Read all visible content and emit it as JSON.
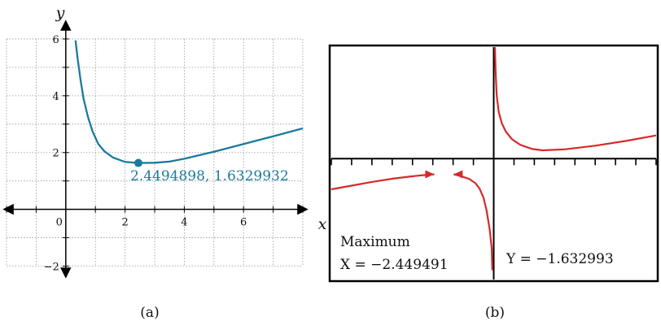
{
  "chart_data": [
    {
      "type": "line",
      "panel_label": "(a)",
      "xlabel": "x",
      "ylabel": "y",
      "xlim": [
        -2,
        8
      ],
      "ylim": [
        -2.3,
        6.8
      ],
      "x_ticks": [
        "0",
        "2",
        "4",
        "6"
      ],
      "y_ticks": [
        "6",
        "4",
        "2",
        "−2"
      ],
      "grid": true,
      "series": [
        {
          "x": [
            0.33,
            0.4,
            0.5,
            0.6,
            0.75,
            0.9,
            1.1,
            1.3,
            1.6,
            2.0,
            2.4494898,
            3.0,
            3.5,
            4.0,
            5.0,
            6.0,
            7.0,
            8.0
          ],
          "y": [
            5.95,
            5.3,
            4.55,
            3.9,
            3.25,
            2.75,
            2.3,
            2.05,
            1.82,
            1.67,
            1.6329932,
            1.64,
            1.68,
            1.78,
            2.03,
            2.3,
            2.57,
            2.85
          ]
        }
      ],
      "point": {
        "x": 2.4494898,
        "y": 1.6329932,
        "label": "2.4494898, 1.6329932"
      },
      "colors": {
        "curve": "#1a7a9e",
        "point": "#1a7a9e"
      }
    },
    {
      "type": "line",
      "panel_label": "(b)",
      "calculator_screen": true,
      "xlim": [
        -8,
        8
      ],
      "ylim": [
        -6.5,
        6
      ],
      "series": [
        {
          "x": [
            0.06,
            0.1,
            0.15,
            0.25,
            0.4,
            0.6,
            0.9,
            1.3,
            1.9,
            2.4,
            3.5,
            5,
            6.5,
            8
          ],
          "y": [
            6,
            4.5,
            3.4,
            2.5,
            1.9,
            1.45,
            1.05,
            0.75,
            0.52,
            0.45,
            0.5,
            0.7,
            0.95,
            1.25
          ]
        },
        {
          "x": [
            -8,
            -7,
            -6,
            -5,
            -4.2,
            -3.5,
            -2.93
          ],
          "y": [
            -1.65,
            -1.45,
            -1.25,
            -1.08,
            -0.97,
            -0.89,
            -0.84
          ]
        },
        {
          "x": [
            -1.97,
            -1.6,
            -1.2,
            -0.9,
            -0.7,
            -0.5,
            -0.35,
            -0.2,
            -0.1,
            -0.07
          ],
          "y": [
            -0.84,
            -0.94,
            -1.1,
            -1.32,
            -1.6,
            -2.1,
            -2.8,
            -3.8,
            -4.8,
            -6
          ]
        }
      ],
      "markers": [
        {
          "x": -2.93,
          "y": -0.84,
          "direction": "right"
        },
        {
          "x": -1.97,
          "y": -0.84,
          "direction": "left"
        }
      ],
      "x_tick_count": 16,
      "text": {
        "top_left": "Maximum",
        "bottom_left": "X = −2.449491",
        "bottom_right": "Y = −1.632993"
      },
      "colors": {
        "curve": "#d42a2a",
        "frame": "#000000"
      }
    }
  ]
}
